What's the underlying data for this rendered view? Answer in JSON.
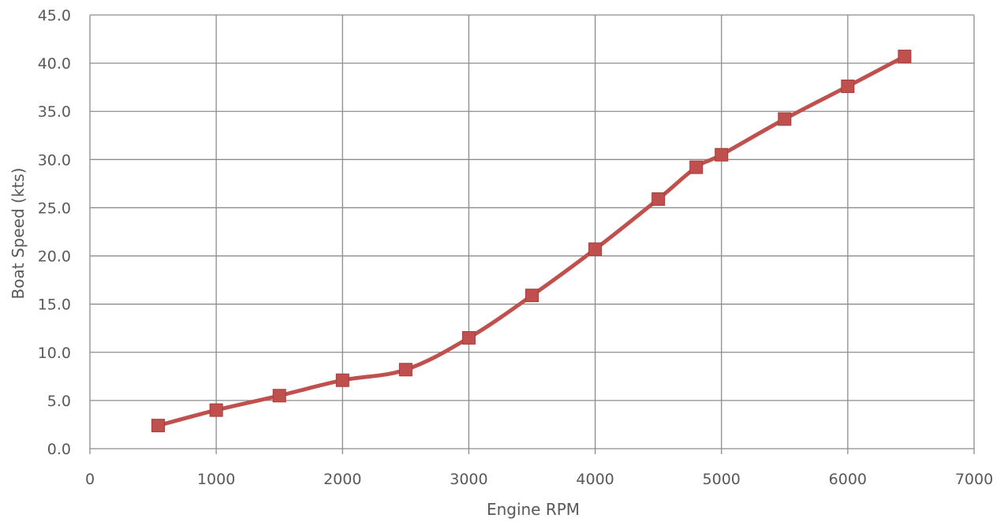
{
  "chart_data": {
    "type": "line",
    "title": "",
    "xlabel": "Engine RPM",
    "ylabel": "Boat Speed (kts)",
    "xlim": [
      0,
      7000
    ],
    "ylim": [
      0,
      45
    ],
    "x_ticks": [
      0,
      1000,
      2000,
      3000,
      4000,
      5000,
      6000,
      7000
    ],
    "x_tick_labels": [
      "0",
      "1000",
      "2000",
      "3000",
      "4000",
      "5000",
      "6000",
      "7000"
    ],
    "y_ticks": [
      0,
      5,
      10,
      15,
      20,
      25,
      30,
      35,
      40,
      45
    ],
    "y_tick_labels": [
      "0.0",
      "5.0",
      "10.0",
      "15.0",
      "20.0",
      "25.0",
      "30.0",
      "35.0",
      "40.0",
      "45.0"
    ],
    "grid": true,
    "legend": "none",
    "series": [
      {
        "color": "#c0504d",
        "marker": "square",
        "smooth": true,
        "x": [
          540,
          1000,
          1500,
          2000,
          2500,
          3000,
          3500,
          4000,
          4500,
          4800,
          5000,
          5500,
          6000,
          6450
        ],
        "y": [
          2.4,
          4.0,
          5.5,
          7.1,
          8.2,
          11.5,
          15.9,
          20.7,
          25.9,
          29.2,
          30.5,
          34.2,
          37.6,
          40.7
        ]
      }
    ]
  }
}
